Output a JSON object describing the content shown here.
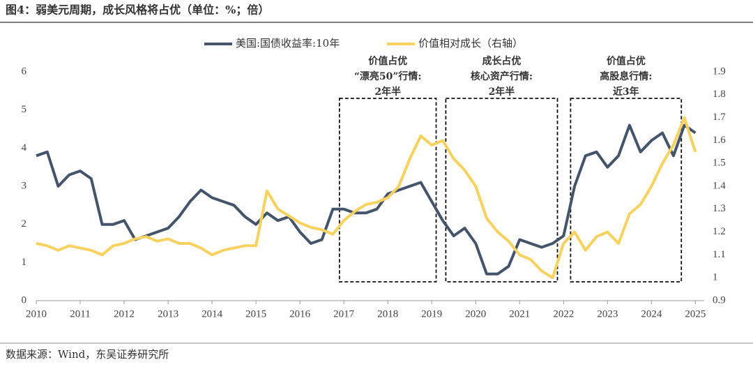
{
  "chart_data": {
    "type": "line",
    "title": "图4：弱美元周期，成长风格将占优（单位：%；倍）",
    "title_color": "#7a1f1f",
    "source": "数据来源：Wind，东吴证券研究所",
    "x": [
      2010,
      2010.25,
      2010.5,
      2010.75,
      2011,
      2011.25,
      2011.5,
      2011.75,
      2012,
      2012.25,
      2012.5,
      2012.75,
      2013,
      2013.25,
      2013.5,
      2013.75,
      2014,
      2014.25,
      2014.5,
      2014.75,
      2015,
      2015.25,
      2015.5,
      2015.75,
      2016,
      2016.25,
      2016.5,
      2016.75,
      2017,
      2017.25,
      2017.5,
      2017.75,
      2018,
      2018.25,
      2018.5,
      2018.75,
      2019,
      2019.25,
      2019.5,
      2019.75,
      2020,
      2020.25,
      2020.5,
      2020.75,
      2021,
      2021.25,
      2021.5,
      2021.75,
      2022,
      2022.25,
      2022.5,
      2022.75,
      2023,
      2023.25,
      2023.5,
      2023.75,
      2024,
      2024.25,
      2024.5,
      2024.75,
      2025
    ],
    "xlim": [
      2010,
      2025.2
    ],
    "xticks": [
      2010,
      2011,
      2012,
      2013,
      2014,
      2015,
      2016,
      2017,
      2018,
      2019,
      2020,
      2021,
      2022,
      2023,
      2024,
      2025
    ],
    "ylim": [
      0,
      6
    ],
    "yticks": [
      0,
      1,
      2,
      3,
      4,
      5,
      6
    ],
    "y2lim": [
      0.9,
      1.9
    ],
    "y2ticks": [
      0.9,
      1,
      1.1,
      1.2,
      1.3,
      1.4,
      1.5,
      1.6,
      1.7,
      1.8,
      1.9
    ],
    "series": [
      {
        "name": "美国:国债收益率:10年",
        "color": "#44546a",
        "values": [
          3.8,
          3.9,
          3.0,
          3.3,
          3.4,
          3.2,
          2.0,
          2.0,
          2.1,
          1.6,
          1.7,
          1.8,
          1.9,
          2.2,
          2.6,
          2.9,
          2.7,
          2.6,
          2.5,
          2.2,
          2.0,
          2.3,
          2.1,
          2.2,
          1.8,
          1.5,
          1.6,
          2.4,
          2.4,
          2.3,
          2.3,
          2.4,
          2.8,
          2.9,
          3.0,
          3.1,
          2.6,
          2.1,
          1.7,
          1.9,
          1.5,
          0.7,
          0.7,
          0.9,
          1.6,
          1.5,
          1.4,
          1.5,
          1.7,
          3.0,
          3.8,
          3.9,
          3.5,
          3.8,
          4.6,
          3.9,
          4.2,
          4.4,
          3.8,
          4.6,
          4.4
        ]
      },
      {
        "name": "价值相对成长（右轴）",
        "color": "#f7d260",
        "axis": "y2",
        "values": [
          1.15,
          1.14,
          1.12,
          1.14,
          1.13,
          1.12,
          1.1,
          1.14,
          1.15,
          1.17,
          1.18,
          1.16,
          1.17,
          1.15,
          1.15,
          1.13,
          1.1,
          1.12,
          1.13,
          1.14,
          1.14,
          1.38,
          1.3,
          1.27,
          1.24,
          1.22,
          1.21,
          1.19,
          1.25,
          1.29,
          1.32,
          1.33,
          1.35,
          1.4,
          1.52,
          1.62,
          1.58,
          1.6,
          1.52,
          1.47,
          1.4,
          1.26,
          1.2,
          1.16,
          1.1,
          1.08,
          1.03,
          1.0,
          1.15,
          1.2,
          1.12,
          1.18,
          1.2,
          1.15,
          1.28,
          1.32,
          1.4,
          1.5,
          1.58,
          1.7,
          1.55
        ]
      }
    ],
    "periods": [
      {
        "start": 2016.9,
        "end": 2019.1,
        "lines": [
          {
            "text": "价值占优",
            "color": "#1f6fb5"
          },
          {
            "text": "“漂亮50”行情:",
            "color": "#1f6fb5"
          },
          {
            "text": "2年半",
            "color": "#c00000"
          }
        ]
      },
      {
        "start": 2019.32,
        "end": 2021.86,
        "lines": [
          {
            "text": "成长占优",
            "color": "#7030a0"
          },
          {
            "text": "核心资产行情:",
            "color": "#7030a0"
          },
          {
            "text": "2年半",
            "color": "#c00000"
          }
        ]
      },
      {
        "start": 2022.16,
        "end": 2024.68,
        "lines": [
          {
            "text": "价值占优",
            "color": "#1f6fb5"
          },
          {
            "text": "高股息行情:",
            "color": "#1f6fb5"
          },
          {
            "text": "近3年",
            "color": "#c00000"
          }
        ]
      }
    ]
  }
}
